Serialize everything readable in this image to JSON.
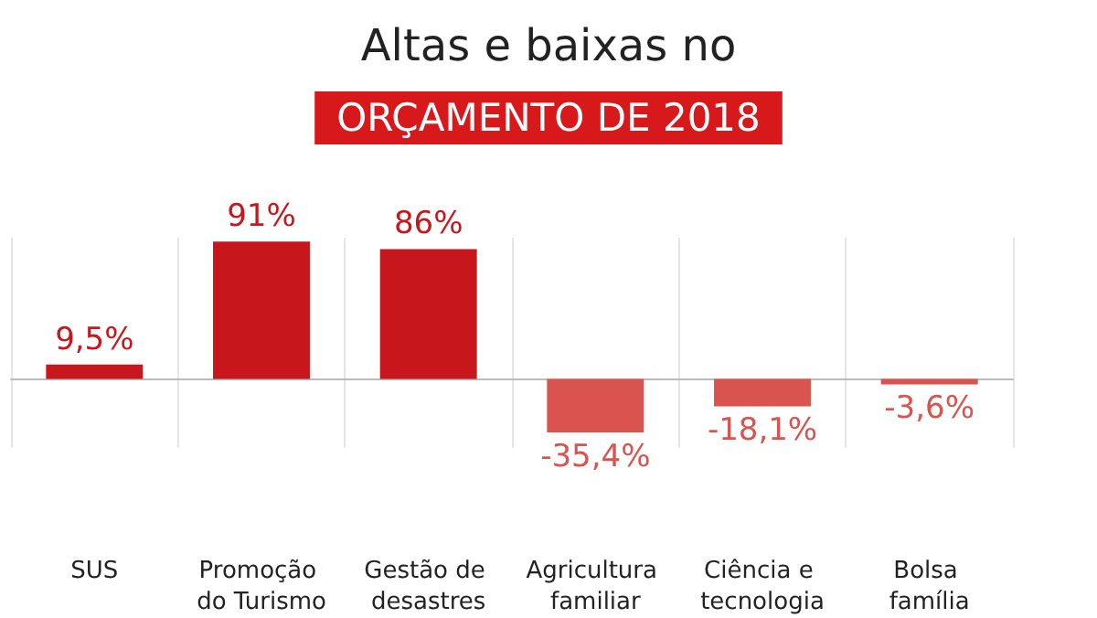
{
  "chart_data": {
    "type": "bar",
    "title": "Altas e baixas no",
    "subtitle": "ORÇAMENTO DE 2018",
    "categories": [
      "SUS",
      "Promoção do Turismo",
      "Gestão de desastres",
      "Agricultura familiar",
      "Ciência e tecnologia",
      "Bolsa família"
    ],
    "values": [
      9.5,
      91,
      86,
      -35.4,
      -18.1,
      -3.6
    ],
    "value_labels": [
      "9,5%",
      "91%",
      "86%",
      "-35,4%",
      "-18,1%",
      "-3,6%"
    ],
    "colors": [
      "#c8161d",
      "#c8161d",
      "#c8161d",
      "#d9534f",
      "#d9534f",
      "#d9534f"
    ],
    "grid": "x"
  }
}
